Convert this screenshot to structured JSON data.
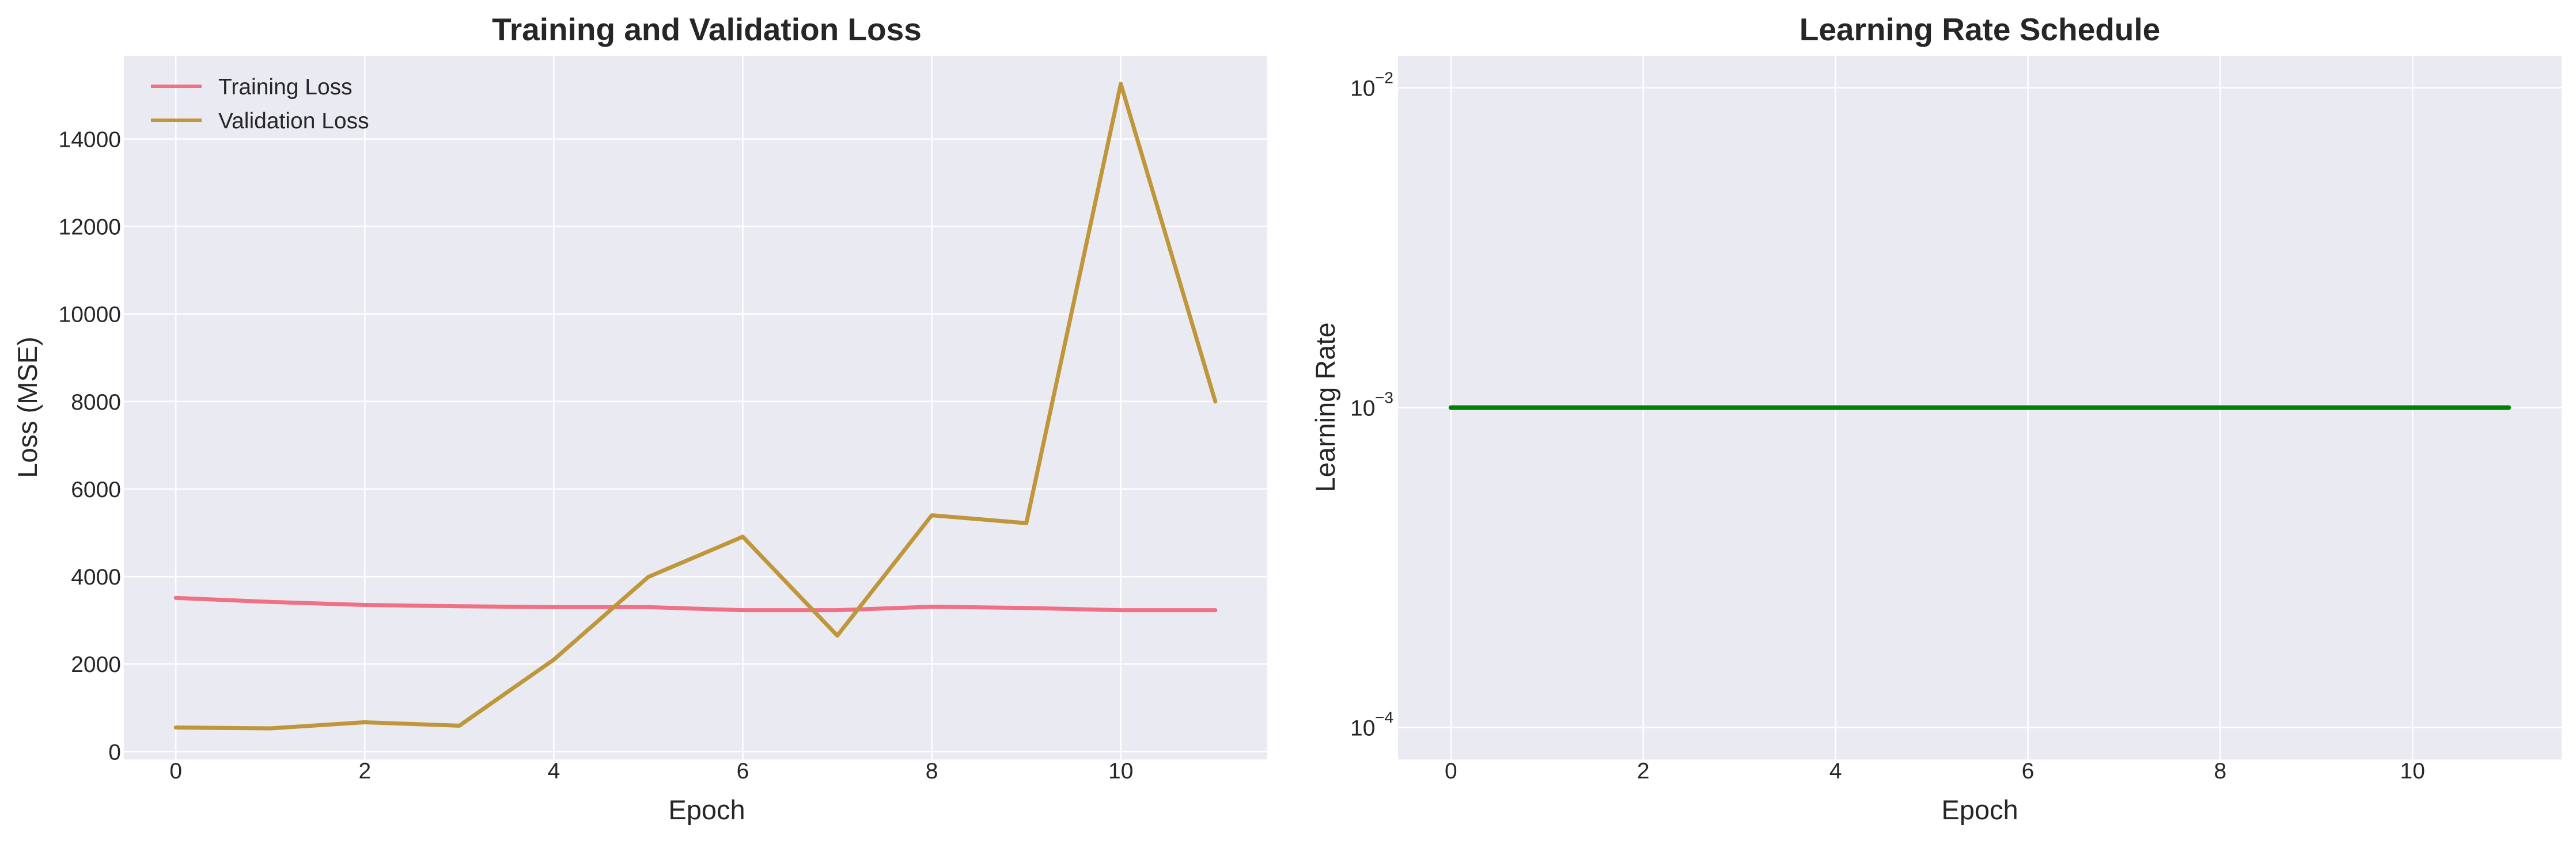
{
  "chart_data": [
    {
      "type": "line",
      "title": "Training and Validation Loss",
      "xlabel": "Epoch",
      "ylabel": "Loss (MSE)",
      "xlim": [
        -0.55,
        11.55
      ],
      "ylim": [
        -180,
        15900
      ],
      "xticks": [
        0,
        2,
        4,
        6,
        8,
        10
      ],
      "yticks": [
        0,
        2000,
        4000,
        6000,
        8000,
        10000,
        12000,
        14000
      ],
      "grid": true,
      "legend_position": "upper-left",
      "background": "#eaeaf2",
      "x": [
        0,
        1,
        2,
        3,
        4,
        5,
        6,
        7,
        8,
        9,
        10,
        11
      ],
      "series": [
        {
          "name": "Training Loss",
          "color": "#f07085",
          "values": [
            3510,
            3420,
            3350,
            3320,
            3300,
            3300,
            3230,
            3230,
            3310,
            3280,
            3230,
            3230
          ]
        },
        {
          "name": "Validation Loss",
          "color": "#bf963a",
          "values": [
            550,
            530,
            670,
            590,
            2100,
            3990,
            4910,
            2650,
            5400,
            5220,
            15260,
            8000
          ]
        }
      ]
    },
    {
      "type": "line",
      "title": "Learning Rate Schedule",
      "xlabel": "Epoch",
      "ylabel": "Learning Rate",
      "xscale": "linear",
      "yscale": "log",
      "xlim": [
        -0.55,
        11.55
      ],
      "ylim": [
        7.943e-05,
        0.01259
      ],
      "xticks": [
        0,
        2,
        4,
        6,
        8,
        10
      ],
      "yticks": [
        {
          "base": "10",
          "exp": "−4",
          "value": 0.0001
        },
        {
          "base": "10",
          "exp": "−3",
          "value": 0.001
        },
        {
          "base": "10",
          "exp": "−2",
          "value": 0.01
        }
      ],
      "grid": true,
      "background": "#eaeaf2",
      "x": [
        0,
        1,
        2,
        3,
        4,
        5,
        6,
        7,
        8,
        9,
        10,
        11
      ],
      "series": [
        {
          "color": "#008000",
          "values": [
            0.001,
            0.001,
            0.001,
            0.001,
            0.001,
            0.001,
            0.001,
            0.001,
            0.001,
            0.001,
            0.001,
            0.001
          ]
        }
      ]
    }
  ]
}
